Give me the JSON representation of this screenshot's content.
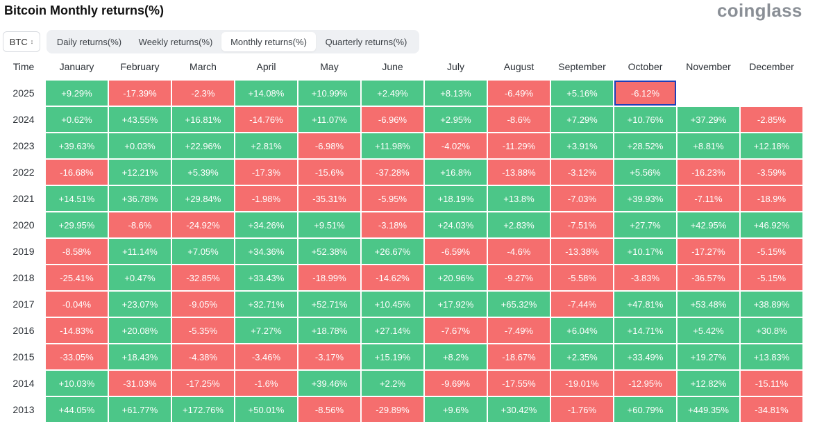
{
  "title": "Bitcoin Monthly returns(%)",
  "brand": "coinglass",
  "coin_select": {
    "value": "BTC"
  },
  "tabs": [
    {
      "label": "Daily returns(%)",
      "active": false
    },
    {
      "label": "Weekly returns(%)",
      "active": false
    },
    {
      "label": "Monthly returns(%)",
      "active": true
    },
    {
      "label": "Quarterly returns(%)",
      "active": false
    }
  ],
  "colors": {
    "positive": "#4cc688",
    "negative": "#f56e6e",
    "selected_border": "#1d3fb8"
  },
  "table": {
    "time_header": "Time",
    "months": [
      "January",
      "February",
      "March",
      "April",
      "May",
      "June",
      "July",
      "August",
      "September",
      "October",
      "November",
      "December"
    ],
    "selected": {
      "year": "2025",
      "month": "October"
    },
    "rows": [
      {
        "year": "2025",
        "values": [
          "+9.29%",
          "-17.39%",
          "-2.3%",
          "+14.08%",
          "+10.99%",
          "+2.49%",
          "+8.13%",
          "-6.49%",
          "+5.16%",
          "-6.12%",
          "",
          ""
        ]
      },
      {
        "year": "2024",
        "values": [
          "+0.62%",
          "+43.55%",
          "+16.81%",
          "-14.76%",
          "+11.07%",
          "-6.96%",
          "+2.95%",
          "-8.6%",
          "+7.29%",
          "+10.76%",
          "+37.29%",
          "-2.85%"
        ]
      },
      {
        "year": "2023",
        "values": [
          "+39.63%",
          "+0.03%",
          "+22.96%",
          "+2.81%",
          "-6.98%",
          "+11.98%",
          "-4.02%",
          "-11.29%",
          "+3.91%",
          "+28.52%",
          "+8.81%",
          "+12.18%"
        ]
      },
      {
        "year": "2022",
        "values": [
          "-16.68%",
          "+12.21%",
          "+5.39%",
          "-17.3%",
          "-15.6%",
          "-37.28%",
          "+16.8%",
          "-13.88%",
          "-3.12%",
          "+5.56%",
          "-16.23%",
          "-3.59%"
        ]
      },
      {
        "year": "2021",
        "values": [
          "+14.51%",
          "+36.78%",
          "+29.84%",
          "-1.98%",
          "-35.31%",
          "-5.95%",
          "+18.19%",
          "+13.8%",
          "-7.03%",
          "+39.93%",
          "-7.11%",
          "-18.9%"
        ]
      },
      {
        "year": "2020",
        "values": [
          "+29.95%",
          "-8.6%",
          "-24.92%",
          "+34.26%",
          "+9.51%",
          "-3.18%",
          "+24.03%",
          "+2.83%",
          "-7.51%",
          "+27.7%",
          "+42.95%",
          "+46.92%"
        ]
      },
      {
        "year": "2019",
        "values": [
          "-8.58%",
          "+11.14%",
          "+7.05%",
          "+34.36%",
          "+52.38%",
          "+26.67%",
          "-6.59%",
          "-4.6%",
          "-13.38%",
          "+10.17%",
          "-17.27%",
          "-5.15%"
        ]
      },
      {
        "year": "2018",
        "values": [
          "-25.41%",
          "+0.47%",
          "-32.85%",
          "+33.43%",
          "-18.99%",
          "-14.62%",
          "+20.96%",
          "-9.27%",
          "-5.58%",
          "-3.83%",
          "-36.57%",
          "-5.15%"
        ]
      },
      {
        "year": "2017",
        "values": [
          "-0.04%",
          "+23.07%",
          "-9.05%",
          "+32.71%",
          "+52.71%",
          "+10.45%",
          "+17.92%",
          "+65.32%",
          "-7.44%",
          "+47.81%",
          "+53.48%",
          "+38.89%"
        ]
      },
      {
        "year": "2016",
        "values": [
          "-14.83%",
          "+20.08%",
          "-5.35%",
          "+7.27%",
          "+18.78%",
          "+27.14%",
          "-7.67%",
          "-7.49%",
          "+6.04%",
          "+14.71%",
          "+5.42%",
          "+30.8%"
        ]
      },
      {
        "year": "2015",
        "values": [
          "-33.05%",
          "+18.43%",
          "-4.38%",
          "-3.46%",
          "-3.17%",
          "+15.19%",
          "+8.2%",
          "-18.67%",
          "+2.35%",
          "+33.49%",
          "+19.27%",
          "+13.83%"
        ]
      },
      {
        "year": "2014",
        "values": [
          "+10.03%",
          "-31.03%",
          "-17.25%",
          "-1.6%",
          "+39.46%",
          "+2.2%",
          "-9.69%",
          "-17.55%",
          "-19.01%",
          "-12.95%",
          "+12.82%",
          "-15.11%"
        ]
      },
      {
        "year": "2013",
        "values": [
          "+44.05%",
          "+61.77%",
          "+172.76%",
          "+50.01%",
          "-8.56%",
          "-29.89%",
          "+9.6%",
          "+30.42%",
          "-1.76%",
          "+60.79%",
          "+449.35%",
          "-34.81%"
        ]
      }
    ]
  }
}
